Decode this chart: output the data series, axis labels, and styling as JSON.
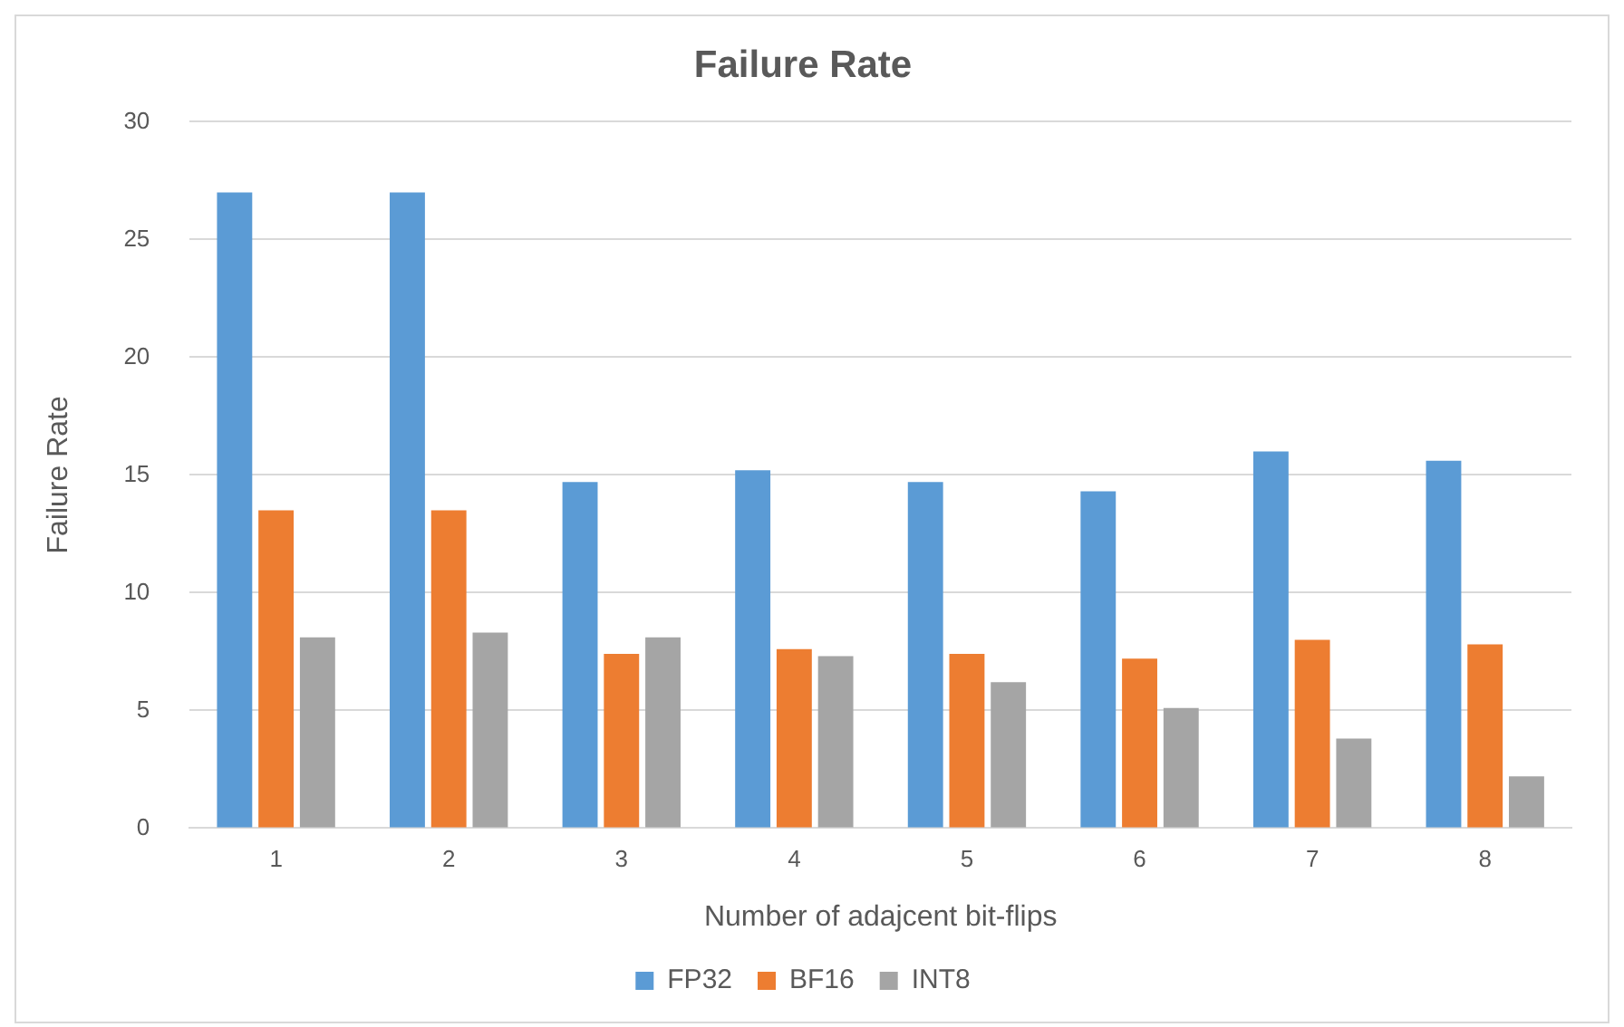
{
  "chart_data": {
    "type": "bar",
    "title": "Failure Rate",
    "xlabel": "Number of adajcent bit-flips",
    "ylabel": "Failure Rate",
    "categories": [
      "1",
      "2",
      "3",
      "4",
      "5",
      "6",
      "7",
      "8"
    ],
    "series": [
      {
        "name": "FP32",
        "color": "#5b9bd5",
        "values": [
          27.0,
          27.0,
          14.7,
          15.2,
          14.7,
          14.3,
          16.0,
          15.6
        ]
      },
      {
        "name": "BF16",
        "color": "#ed7d31",
        "values": [
          13.5,
          13.5,
          7.4,
          7.6,
          7.4,
          7.2,
          8.0,
          7.8
        ]
      },
      {
        "name": "INT8",
        "color": "#a5a5a5",
        "values": [
          8.1,
          8.3,
          8.1,
          7.3,
          6.2,
          5.1,
          3.8,
          2.2
        ]
      }
    ],
    "ylim": [
      0,
      30
    ],
    "yticks": [
      0,
      5,
      10,
      15,
      20,
      25,
      30
    ],
    "grid": "y",
    "legend": "bottom"
  }
}
